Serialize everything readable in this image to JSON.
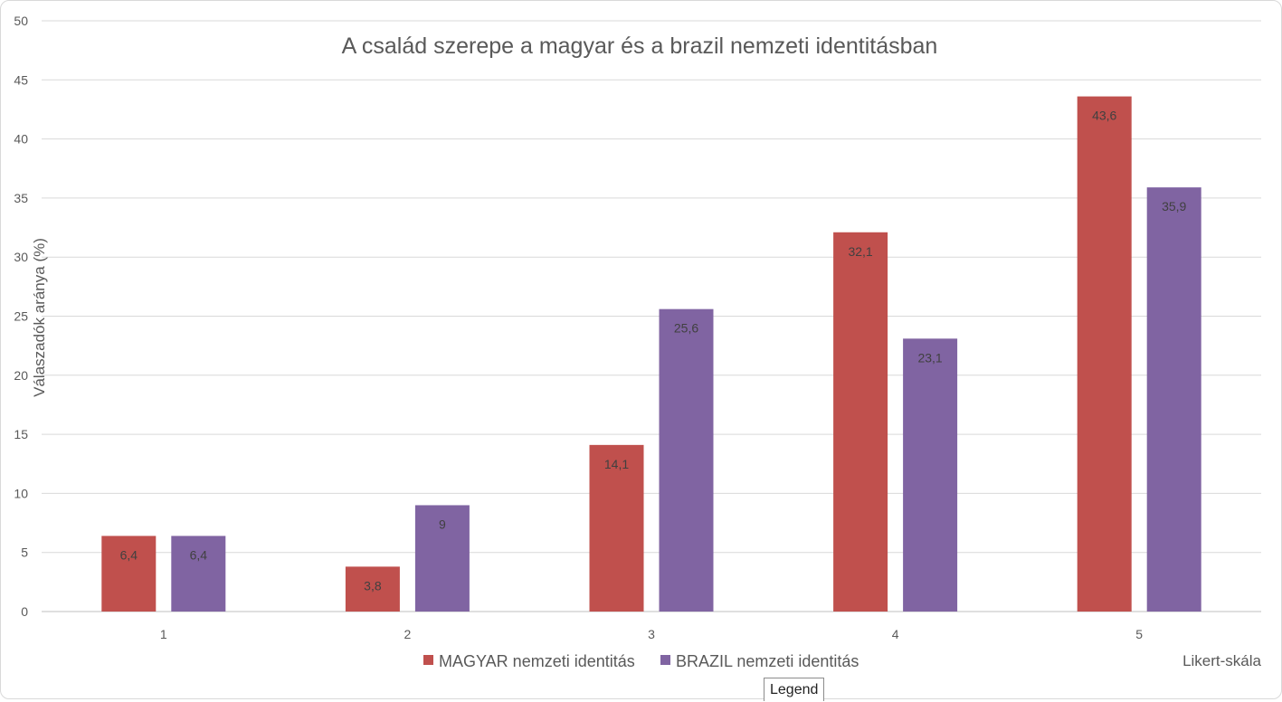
{
  "chart_data": {
    "type": "bar",
    "title": "A család szerepe a magyar és a brazil nemzeti identitásban",
    "xlabel": "Likert-skála",
    "ylabel": "Válaszadók aránya (%)",
    "categories": [
      "1",
      "2",
      "3",
      "4",
      "5"
    ],
    "series": [
      {
        "name": "MAGYAR nemzeti identitás",
        "color": "#c0504d",
        "values": [
          6.4,
          3.8,
          14.1,
          32.1,
          43.6
        ],
        "labels": [
          "6,4",
          "3,8",
          "14,1",
          "32,1",
          "43,6"
        ]
      },
      {
        "name": "BRAZIL nemzeti identitás",
        "color": "#8064a2",
        "values": [
          6.4,
          9,
          25.6,
          23.1,
          35.9
        ],
        "labels": [
          "6,4",
          "9",
          "25,6",
          "23,1",
          "35,9"
        ]
      }
    ],
    "ylim": [
      0,
      50
    ],
    "yticks": [
      "0",
      "5",
      "10",
      "15",
      "20",
      "25",
      "30",
      "35",
      "40",
      "45",
      "50"
    ],
    "grid": true,
    "legend": "bottom"
  },
  "tooltip": {
    "label": "Legend"
  }
}
